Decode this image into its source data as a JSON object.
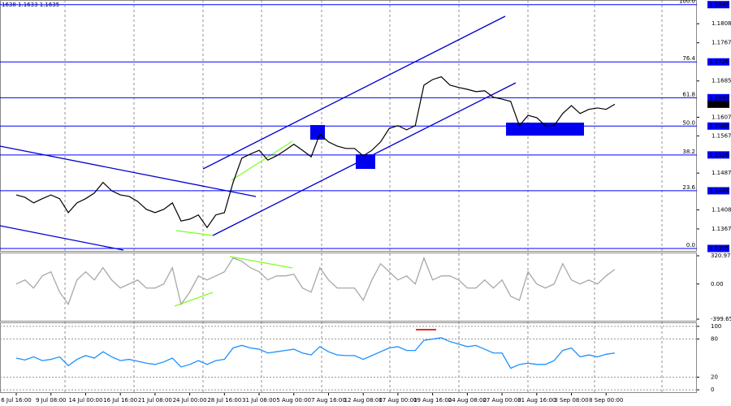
{
  "chart_data": [
    {
      "type": "line",
      "title": "1638 1.1633 1.1635",
      "color": "#000000",
      "values": [
        1.144,
        1.1435,
        1.1423,
        1.1432,
        1.144,
        1.1432,
        1.1402,
        1.1423,
        1.1432,
        1.1444,
        1.1467,
        1.1449,
        1.144,
        1.1437,
        1.1426,
        1.1409,
        1.1402,
        1.1409,
        1.1423,
        1.1384,
        1.1388,
        1.1397,
        1.137,
        1.1397,
        1.1402,
        1.1467,
        1.1519,
        1.1528,
        1.1536,
        1.1515,
        1.1524,
        1.1536,
        1.1549,
        1.1536,
        1.1522,
        1.1571,
        1.1554,
        1.1545,
        1.154,
        1.154,
        1.1524,
        1.1536,
        1.1554,
        1.1583,
        1.1589,
        1.158,
        1.1589,
        1.1676,
        1.1688,
        1.1694,
        1.1676,
        1.1671,
        1.1667,
        1.1662,
        1.1664,
        1.165,
        1.1646,
        1.1641,
        1.1589,
        1.1611,
        1.1606,
        1.1589,
        1.1589,
        1.1615,
        1.1632,
        1.1615,
        1.1624,
        1.1627,
        1.1624,
        1.1635
      ],
      "ylim": [
        1.1318,
        1.1859
      ],
      "yticks": [
        1.1808,
        1.1767,
        1.1685,
        1.1607,
        1.1567,
        1.1487,
        1.1408,
        1.1367
      ],
      "fib_levels": [
        {
          "ratio": "100.0",
          "price": 1.1849
        },
        {
          "ratio": "76.4",
          "price": 1.1726
        },
        {
          "ratio": "61.8",
          "price": 1.1649
        },
        {
          "ratio": "50.0",
          "price": 1.1588
        },
        {
          "ratio": "38.2",
          "price": 1.1526
        },
        {
          "ratio": "23.6",
          "price": 1.1449
        },
        {
          "ratio": "0.0",
          "price": 1.1325
        }
      ],
      "fib_color": "#0000ff",
      "last_price": 1.1635,
      "grid": true
    },
    {
      "type": "line",
      "color": "#a8a8a8",
      "values": [
        0,
        46,
        -46,
        92,
        139,
        -92,
        -231,
        46,
        139,
        46,
        185,
        46,
        -46,
        0,
        46,
        -46,
        -46,
        0,
        185,
        -231,
        -92,
        92,
        46,
        92,
        139,
        296,
        259,
        185,
        139,
        46,
        92,
        92,
        111,
        -46,
        -92,
        185,
        46,
        -46,
        -46,
        -46,
        -185,
        46,
        231,
        139,
        46,
        92,
        0,
        296,
        46,
        92,
        92,
        46,
        -46,
        -46,
        46,
        -46,
        46,
        -139,
        -185,
        139,
        0,
        -46,
        0,
        231,
        46,
        0,
        46,
        0,
        92,
        166
      ],
      "ylim": [
        -427,
        358
      ],
      "yticks": [
        320.9724,
        {
          "value": 0,
          "label": "0.00"
        },
        -399.652
      ],
      "grid": true
    },
    {
      "type": "line",
      "color": "#1e90ff",
      "categories": [
        "6 Jul 16:00",
        null,
        null,
        null,
        "9 Jul 08:00",
        null,
        null,
        null,
        "14 Jul 00:00",
        null,
        null,
        null,
        "16 Jul 16:00",
        null,
        null,
        null,
        "21 Jul 08:00",
        null,
        null,
        null,
        "24 Jul 00:00",
        null,
        null,
        null,
        "28 Jul 16:00",
        null,
        null,
        null,
        "31 Jul 08:00",
        null,
        null,
        null,
        "5 Aug 00:00",
        null,
        null,
        null,
        "7 Aug 16:00",
        null,
        null,
        null,
        "12 Aug 08:00",
        null,
        null,
        null,
        "17 Aug 00:00",
        null,
        null,
        null,
        "19 Aug 16:00",
        null,
        null,
        null,
        "24 Aug 08:00",
        null,
        null,
        null,
        "27 Aug 00:00",
        null,
        null,
        null,
        "31 Aug 16:00",
        null,
        null,
        null,
        "3 Sep 08:00",
        null,
        null,
        null,
        "8 Sep 00:00",
        null
      ],
      "values": [
        50,
        47,
        52,
        46,
        48,
        52,
        38,
        48,
        54,
        50,
        60,
        52,
        46,
        48,
        45,
        42,
        40,
        44,
        50,
        36,
        40,
        46,
        40,
        46,
        48,
        66,
        70,
        66,
        64,
        58,
        60,
        62,
        64,
        58,
        55,
        68,
        60,
        55,
        54,
        54,
        48,
        54,
        60,
        66,
        68,
        62,
        62,
        78,
        80,
        82,
        76,
        72,
        68,
        70,
        64,
        58,
        58,
        34,
        40,
        42,
        40,
        40,
        46,
        62,
        66,
        52,
        55,
        52,
        56,
        58
      ],
      "ylim": [
        -5,
        105
      ],
      "yticks": [
        100,
        80,
        20,
        0
      ],
      "grid": true
    }
  ]
}
